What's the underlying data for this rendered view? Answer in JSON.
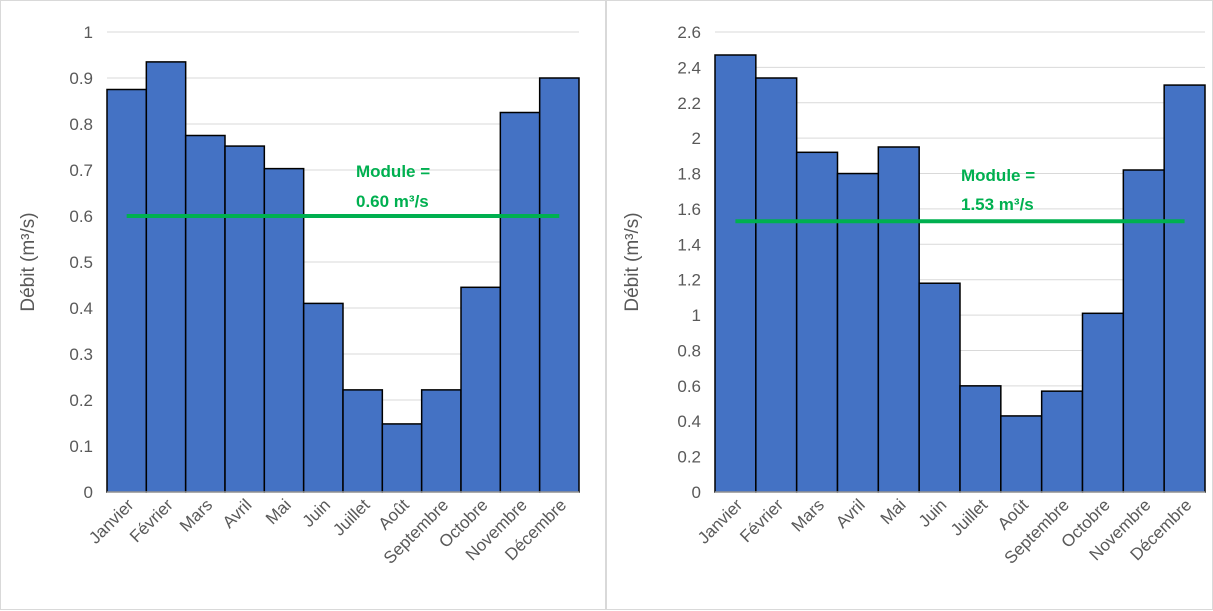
{
  "colors": {
    "bar": "#4472c4",
    "bar_stroke": "#000000",
    "module_line": "#00b050",
    "grid": "#d9d9d9",
    "text": "#595959"
  },
  "chart_data": [
    {
      "type": "bar",
      "categories": [
        "Janvier",
        "Février",
        "Mars",
        "Avril",
        "Mai",
        "Juin",
        "Juillet",
        "Août",
        "Septembre",
        "Octobre",
        "Novembre",
        "Décembre"
      ],
      "values": [
        0.875,
        0.935,
        0.775,
        0.752,
        0.703,
        0.41,
        0.222,
        0.148,
        0.222,
        0.445,
        0.825,
        0.9
      ],
      "ylabel": "Débit (m³/s)",
      "ylim": [
        0,
        1
      ],
      "yticks": [
        "0",
        "0.1",
        "0.2",
        "0.3",
        "0.4",
        "0.5",
        "0.6",
        "0.7",
        "0.8",
        "0.9",
        "1"
      ],
      "grid": true,
      "module": {
        "value": 0.6,
        "label_line1": "Module =",
        "label_line2": "0.60 m³/s"
      }
    },
    {
      "type": "bar",
      "categories": [
        "Janvier",
        "Février",
        "Mars",
        "Avril",
        "Mai",
        "Juin",
        "Juillet",
        "Août",
        "Septembre",
        "Octobre",
        "Novembre",
        "Décembre"
      ],
      "values": [
        2.47,
        2.34,
        1.92,
        1.8,
        1.95,
        1.18,
        0.6,
        0.43,
        0.57,
        1.01,
        1.82,
        2.3
      ],
      "ylabel": "Débit (m³/s)",
      "ylim": [
        0,
        2.6
      ],
      "yticks": [
        "0",
        "0.2",
        "0.4",
        "0.6",
        "0.8",
        "1",
        "1.2",
        "1.4",
        "1.6",
        "1.8",
        "2",
        "2.2",
        "2.4",
        "2.6"
      ],
      "grid": true,
      "module": {
        "value": 1.53,
        "label_line1": "Module =",
        "label_line2": "1.53 m³/s"
      }
    }
  ]
}
